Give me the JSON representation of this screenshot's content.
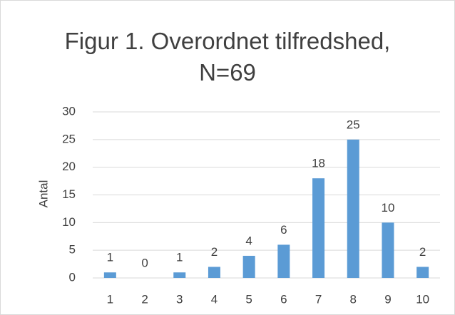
{
  "chart_data": {
    "type": "bar",
    "title": "Figur 1. Overordnet tilfredshed, N=69",
    "ylabel": "Antal",
    "categories": [
      "1",
      "2",
      "3",
      "4",
      "5",
      "6",
      "7",
      "8",
      "9",
      "10"
    ],
    "values": [
      1,
      0,
      1,
      2,
      4,
      6,
      18,
      25,
      10,
      2
    ],
    "color": "#5b9bd5",
    "ylim": [
      0,
      30
    ],
    "yticks": [
      0,
      5,
      10,
      15,
      20,
      25,
      30
    ],
    "grid": true
  }
}
